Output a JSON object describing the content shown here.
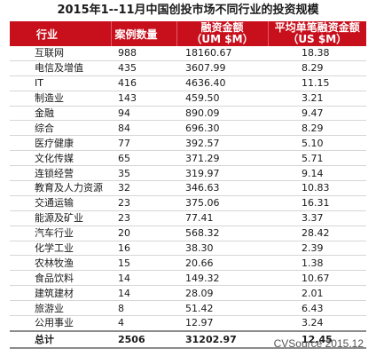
{
  "title": "2015年1--11月中国创投市场不同行业的投资规模",
  "columns": {
    "industry": "行业",
    "cases": "案例数量",
    "amount_line1": "融资金额",
    "amount_line2": "（UM $M）",
    "avg_line1": "平均单笔融资金额",
    "avg_line2": "（US $M）"
  },
  "rows": [
    {
      "industry": "互联网",
      "cases": "988",
      "amount": "18160.67",
      "avg": "18.38"
    },
    {
      "industry": "电信及增值",
      "cases": "435",
      "amount": "3607.99",
      "avg": "8.29"
    },
    {
      "industry": "IT",
      "cases": "416",
      "amount": "4636.40",
      "avg": "11.15"
    },
    {
      "industry": "制造业",
      "cases": "143",
      "amount": "459.50",
      "avg": "3.21"
    },
    {
      "industry": "金融",
      "cases": "94",
      "amount": "890.09",
      "avg": "9.47"
    },
    {
      "industry": "综合",
      "cases": "84",
      "amount": "696.30",
      "avg": "8.29"
    },
    {
      "industry": "医疗健康",
      "cases": "77",
      "amount": "392.57",
      "avg": "5.10"
    },
    {
      "industry": "文化传媒",
      "cases": "65",
      "amount": "371.29",
      "avg": "5.71"
    },
    {
      "industry": "连锁经营",
      "cases": "35",
      "amount": "319.97",
      "avg": "9.14"
    },
    {
      "industry": "教育及人力资源",
      "cases": "32",
      "amount": "346.63",
      "avg": "10.83"
    },
    {
      "industry": "交通运输",
      "cases": "23",
      "amount": "375.06",
      "avg": "16.31"
    },
    {
      "industry": "能源及矿业",
      "cases": "23",
      "amount": "77.41",
      "avg": "3.37"
    },
    {
      "industry": "汽车行业",
      "cases": "20",
      "amount": "568.32",
      "avg": "28.42"
    },
    {
      "industry": "化学工业",
      "cases": "16",
      "amount": "38.30",
      "avg": "2.39"
    },
    {
      "industry": "农林牧渔",
      "cases": "15",
      "amount": "20.66",
      "avg": "1.38"
    },
    {
      "industry": "食品饮料",
      "cases": "14",
      "amount": "149.32",
      "avg": "10.67"
    },
    {
      "industry": "建筑建材",
      "cases": "14",
      "amount": "28.09",
      "avg": "2.01"
    },
    {
      "industry": "旅游业",
      "cases": "8",
      "amount": "51.42",
      "avg": "6.43"
    },
    {
      "industry": "公用事业",
      "cases": "4",
      "amount": "12.97",
      "avg": "3.24"
    }
  ],
  "total": {
    "industry": "总计",
    "cases": "2506",
    "amount": "31202.97",
    "avg": "12.45"
  },
  "source": "CVSource 2015.12",
  "colors": {
    "header_bg": "#c8101d",
    "header_text": "#ffffff"
  }
}
